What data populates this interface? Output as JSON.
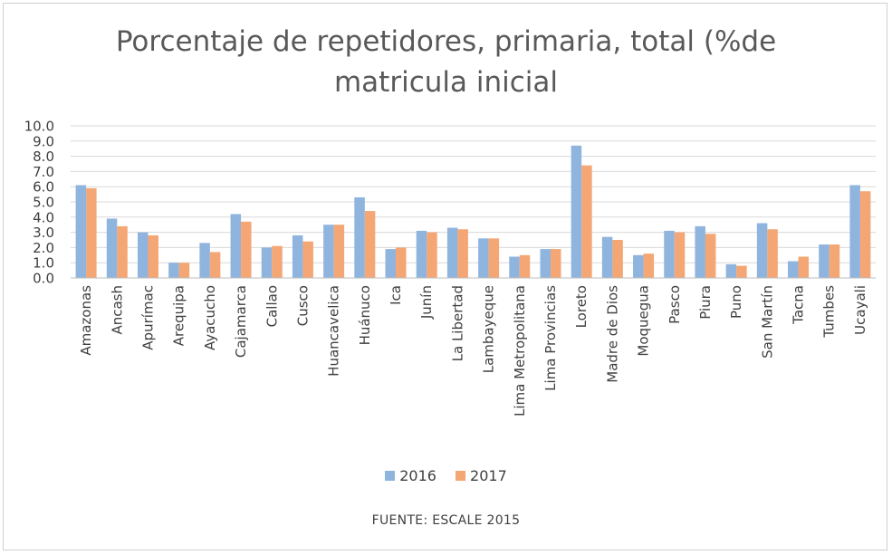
{
  "chart_data": {
    "type": "bar",
    "title_line1": "Porcentaje de repetidores, primaria, total (%de",
    "title_line2": "matricula inicial",
    "xlabel": "",
    "ylabel": "",
    "ylim": [
      0,
      10
    ],
    "yticks": [
      "0.0",
      "1.0",
      "2.0",
      "3.0",
      "4.0",
      "5.0",
      "6.0",
      "7.0",
      "8.0",
      "9.0",
      "10.0"
    ],
    "grid": true,
    "legend_position": "bottom",
    "categories": [
      "Amazonas",
      "Ancash",
      "Apurímac",
      "Arequipa",
      "Ayacucho",
      "Cajamarca",
      "Callao",
      "Cusco",
      "Huancavelica",
      "Huánuco",
      "Ica",
      "Junín",
      "La Libertad",
      "Lambayeque",
      "Lima Metropolitana",
      "Lima Provincias",
      "Loreto",
      "Madre de Dios",
      "Moquegua",
      "Pasco",
      "Piura",
      "Puno",
      "San Martín",
      "Tacna",
      "Tumbes",
      "Ucayali"
    ],
    "series": [
      {
        "name": "2016",
        "color": "#8fb4de",
        "values": [
          6.1,
          3.9,
          3.0,
          1.0,
          2.3,
          4.2,
          2.0,
          2.8,
          3.5,
          5.3,
          1.9,
          3.1,
          3.3,
          2.6,
          1.4,
          1.9,
          8.7,
          2.7,
          1.5,
          3.1,
          3.4,
          0.9,
          3.6,
          1.1,
          2.2,
          6.1
        ]
      },
      {
        "name": "2017",
        "color": "#f4a674",
        "values": [
          5.9,
          3.4,
          2.8,
          1.0,
          1.7,
          3.7,
          2.1,
          2.4,
          3.5,
          4.4,
          2.0,
          3.0,
          3.2,
          2.6,
          1.5,
          1.9,
          7.4,
          2.5,
          1.6,
          3.0,
          2.9,
          0.8,
          3.2,
          1.4,
          2.2,
          5.7
        ]
      }
    ],
    "source_note": "FUENTE: ESCALE 2015"
  }
}
